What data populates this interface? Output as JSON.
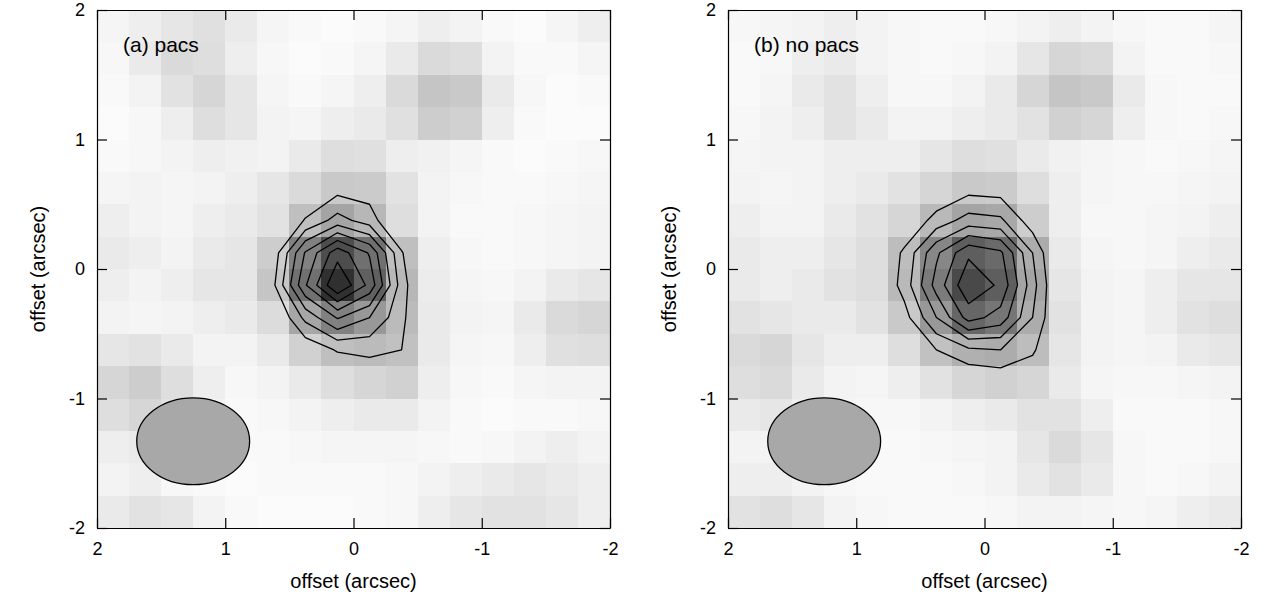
{
  "chart_data": [
    {
      "type": "heatmap",
      "title": "(a) pacs",
      "xlabel": "offset (arcsec)",
      "ylabel": "offset (arcsec)",
      "xlim": [
        2,
        -2
      ],
      "ylim": [
        -2,
        2
      ],
      "xticks": [
        2,
        1,
        0,
        -1,
        -2
      ],
      "yticks": [
        -2,
        -1,
        0,
        1,
        2
      ],
      "x_centers": [
        1.875,
        1.625,
        1.375,
        1.125,
        0.875,
        0.625,
        0.375,
        0.125,
        -0.125,
        -0.375,
        -0.625,
        -0.875,
        -1.125,
        -1.375,
        -1.625,
        -1.875
      ],
      "y_centers": [
        1.875,
        1.625,
        1.375,
        1.125,
        0.875,
        0.625,
        0.375,
        0.125,
        -0.125,
        -0.375,
        -0.625,
        -0.875,
        -1.125,
        -1.375,
        -1.625,
        -1.875
      ],
      "cells": [
        [
          0.05,
          0.08,
          0.12,
          0.15,
          0.1,
          0.05,
          0.03,
          0.02,
          0.03,
          0.05,
          0.08,
          0.06,
          0.03,
          0.02,
          0.05,
          0.08
        ],
        [
          0.04,
          0.1,
          0.18,
          0.16,
          0.08,
          0.04,
          0.02,
          0.03,
          0.05,
          0.1,
          0.18,
          0.16,
          0.06,
          0.03,
          0.03,
          0.05
        ],
        [
          0.03,
          0.06,
          0.14,
          0.2,
          0.12,
          0.05,
          0.03,
          0.05,
          0.08,
          0.18,
          0.28,
          0.26,
          0.1,
          0.04,
          0.02,
          0.03
        ],
        [
          0.02,
          0.04,
          0.08,
          0.16,
          0.12,
          0.06,
          0.05,
          0.08,
          0.1,
          0.15,
          0.24,
          0.22,
          0.08,
          0.03,
          0.02,
          0.02
        ],
        [
          0.03,
          0.04,
          0.06,
          0.08,
          0.07,
          0.06,
          0.1,
          0.16,
          0.15,
          0.08,
          0.07,
          0.05,
          0.03,
          0.02,
          0.03,
          0.04
        ],
        [
          0.05,
          0.06,
          0.05,
          0.06,
          0.08,
          0.12,
          0.18,
          0.26,
          0.25,
          0.14,
          0.06,
          0.04,
          0.03,
          0.03,
          0.04,
          0.05
        ],
        [
          0.08,
          0.06,
          0.05,
          0.08,
          0.1,
          0.14,
          0.31,
          0.44,
          0.35,
          0.16,
          0.06,
          0.03,
          0.03,
          0.04,
          0.05,
          0.06
        ],
        [
          0.1,
          0.08,
          0.06,
          0.1,
          0.12,
          0.24,
          0.61,
          0.86,
          0.69,
          0.31,
          0.08,
          0.04,
          0.03,
          0.04,
          0.05,
          0.06
        ],
        [
          0.08,
          0.06,
          0.08,
          0.12,
          0.12,
          0.28,
          0.69,
          1.0,
          0.77,
          0.35,
          0.09,
          0.05,
          0.04,
          0.06,
          0.1,
          0.12
        ],
        [
          0.06,
          0.05,
          0.06,
          0.08,
          0.1,
          0.17,
          0.43,
          0.61,
          0.5,
          0.33,
          0.1,
          0.06,
          0.05,
          0.1,
          0.18,
          0.2
        ],
        [
          0.12,
          0.14,
          0.1,
          0.06,
          0.06,
          0.1,
          0.22,
          0.31,
          0.33,
          0.3,
          0.1,
          0.05,
          0.04,
          0.08,
          0.15,
          0.16
        ],
        [
          0.2,
          0.24,
          0.16,
          0.08,
          0.04,
          0.06,
          0.1,
          0.16,
          0.2,
          0.22,
          0.08,
          0.04,
          0.03,
          0.05,
          0.06,
          0.06
        ],
        [
          0.16,
          0.2,
          0.14,
          0.06,
          0.03,
          0.04,
          0.06,
          0.08,
          0.1,
          0.1,
          0.06,
          0.03,
          0.02,
          0.03,
          0.03,
          0.04
        ],
        [
          0.08,
          0.1,
          0.06,
          0.04,
          0.03,
          0.03,
          0.04,
          0.05,
          0.05,
          0.05,
          0.04,
          0.03,
          0.04,
          0.06,
          0.08,
          0.06
        ],
        [
          0.06,
          0.08,
          0.04,
          0.03,
          0.02,
          0.03,
          0.03,
          0.03,
          0.03,
          0.04,
          0.06,
          0.08,
          0.1,
          0.12,
          0.1,
          0.08
        ],
        [
          0.1,
          0.14,
          0.12,
          0.06,
          0.03,
          0.02,
          0.02,
          0.02,
          0.03,
          0.04,
          0.08,
          0.12,
          0.14,
          0.14,
          0.12,
          0.08
        ]
      ],
      "color_range": [
        0,
        1
      ],
      "contour_levels": [
        0.3,
        0.4,
        0.5,
        0.6,
        0.7,
        0.8,
        0.9
      ],
      "beam": {
        "center": [
          1.25,
          -1.33
        ],
        "width": 0.88,
        "height": 0.67
      }
    },
    {
      "type": "heatmap",
      "title": "(b) no pacs",
      "xlabel": "offset (arcsec)",
      "ylabel": "offset (arcsec)",
      "xlim": [
        2,
        -2
      ],
      "ylim": [
        -2,
        2
      ],
      "xticks": [
        2,
        1,
        0,
        -1,
        -2
      ],
      "yticks": [
        -2,
        -1,
        0,
        1,
        2
      ],
      "x_centers": [
        1.875,
        1.625,
        1.375,
        1.125,
        0.875,
        0.625,
        0.375,
        0.125,
        -0.125,
        -0.375,
        -0.625,
        -0.875,
        -1.125,
        -1.375,
        -1.625,
        -1.875
      ],
      "y_centers": [
        1.875,
        1.625,
        1.375,
        1.125,
        0.875,
        0.625,
        0.375,
        0.125,
        -0.125,
        -0.375,
        -0.625,
        -0.875,
        -1.125,
        -1.375,
        -1.625,
        -1.875
      ],
      "cells": [
        [
          0.04,
          0.05,
          0.06,
          0.08,
          0.06,
          0.04,
          0.03,
          0.03,
          0.04,
          0.06,
          0.08,
          0.06,
          0.04,
          0.03,
          0.03,
          0.05
        ],
        [
          0.03,
          0.04,
          0.08,
          0.1,
          0.06,
          0.04,
          0.03,
          0.04,
          0.06,
          0.12,
          0.2,
          0.18,
          0.06,
          0.03,
          0.03,
          0.04
        ],
        [
          0.03,
          0.05,
          0.1,
          0.14,
          0.08,
          0.04,
          0.04,
          0.06,
          0.1,
          0.2,
          0.28,
          0.26,
          0.1,
          0.04,
          0.03,
          0.03
        ],
        [
          0.04,
          0.06,
          0.08,
          0.14,
          0.1,
          0.06,
          0.06,
          0.08,
          0.1,
          0.14,
          0.22,
          0.2,
          0.08,
          0.04,
          0.03,
          0.04
        ],
        [
          0.05,
          0.06,
          0.06,
          0.08,
          0.08,
          0.08,
          0.12,
          0.16,
          0.15,
          0.1,
          0.07,
          0.05,
          0.04,
          0.03,
          0.04,
          0.05
        ],
        [
          0.06,
          0.05,
          0.06,
          0.08,
          0.1,
          0.14,
          0.2,
          0.26,
          0.25,
          0.16,
          0.08,
          0.05,
          0.04,
          0.04,
          0.05,
          0.06
        ],
        [
          0.08,
          0.06,
          0.06,
          0.1,
          0.14,
          0.2,
          0.34,
          0.44,
          0.42,
          0.24,
          0.08,
          0.04,
          0.04,
          0.05,
          0.06,
          0.08
        ],
        [
          0.1,
          0.08,
          0.08,
          0.12,
          0.16,
          0.32,
          0.58,
          0.78,
          0.72,
          0.4,
          0.1,
          0.05,
          0.04,
          0.05,
          0.08,
          0.1
        ],
        [
          0.1,
          0.08,
          0.1,
          0.14,
          0.16,
          0.34,
          0.64,
          0.88,
          0.78,
          0.44,
          0.12,
          0.06,
          0.05,
          0.08,
          0.12,
          0.12
        ],
        [
          0.14,
          0.12,
          0.1,
          0.1,
          0.14,
          0.26,
          0.5,
          0.74,
          0.66,
          0.4,
          0.14,
          0.06,
          0.05,
          0.08,
          0.14,
          0.16
        ],
        [
          0.18,
          0.2,
          0.12,
          0.08,
          0.08,
          0.16,
          0.3,
          0.38,
          0.4,
          0.32,
          0.12,
          0.06,
          0.05,
          0.06,
          0.1,
          0.12
        ],
        [
          0.16,
          0.18,
          0.1,
          0.06,
          0.05,
          0.08,
          0.14,
          0.2,
          0.22,
          0.2,
          0.1,
          0.05,
          0.04,
          0.04,
          0.05,
          0.06
        ],
        [
          0.1,
          0.12,
          0.08,
          0.05,
          0.04,
          0.04,
          0.06,
          0.08,
          0.1,
          0.14,
          0.14,
          0.08,
          0.03,
          0.03,
          0.03,
          0.04
        ],
        [
          0.06,
          0.06,
          0.05,
          0.04,
          0.03,
          0.03,
          0.04,
          0.05,
          0.06,
          0.12,
          0.18,
          0.12,
          0.04,
          0.03,
          0.03,
          0.04
        ],
        [
          0.08,
          0.08,
          0.06,
          0.04,
          0.03,
          0.03,
          0.03,
          0.04,
          0.06,
          0.1,
          0.14,
          0.1,
          0.04,
          0.03,
          0.04,
          0.06
        ],
        [
          0.14,
          0.16,
          0.12,
          0.06,
          0.04,
          0.03,
          0.03,
          0.03,
          0.04,
          0.06,
          0.06,
          0.05,
          0.04,
          0.05,
          0.08,
          0.1
        ]
      ],
      "color_range": [
        0,
        1
      ],
      "contour_levels": [
        0.3,
        0.4,
        0.5,
        0.6,
        0.7,
        0.8
      ],
      "beam": {
        "center": [
          1.25,
          -1.33
        ],
        "width": 0.88,
        "height": 0.67
      }
    }
  ]
}
